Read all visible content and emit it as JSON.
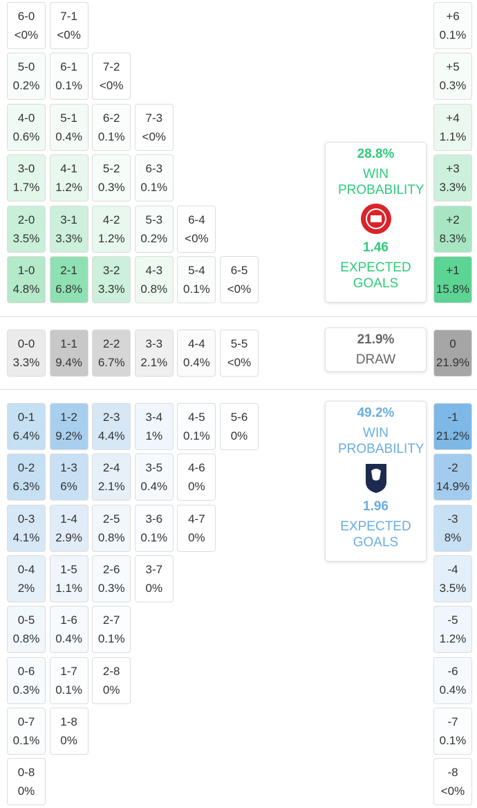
{
  "home_scores": [
    [
      {
        "s": "6-0",
        "p": "<0%",
        "c": "#ffffff"
      },
      {
        "s": "7-1",
        "p": "<0%",
        "c": "#ffffff"
      }
    ],
    [
      {
        "s": "5-0",
        "p": "0.2%",
        "c": "#f8fcfa"
      },
      {
        "s": "6-1",
        "p": "0.1%",
        "c": "#fbfdfc"
      },
      {
        "s": "7-2",
        "p": "<0%",
        "c": "#ffffff"
      }
    ],
    [
      {
        "s": "4-0",
        "p": "0.6%",
        "c": "#f0faf4"
      },
      {
        "s": "5-1",
        "p": "0.4%",
        "c": "#f4fbf7"
      },
      {
        "s": "6-2",
        "p": "0.1%",
        "c": "#fbfdfc"
      },
      {
        "s": "7-3",
        "p": "<0%",
        "c": "#ffffff"
      }
    ],
    [
      {
        "s": "3-0",
        "p": "1.7%",
        "c": "#e2f6ea"
      },
      {
        "s": "4-1",
        "p": "1.2%",
        "c": "#e8f8ee"
      },
      {
        "s": "5-2",
        "p": "0.3%",
        "c": "#f6fcf8"
      },
      {
        "s": "6-3",
        "p": "0.1%",
        "c": "#fbfdfc"
      }
    ],
    [
      {
        "s": "2-0",
        "p": "3.5%",
        "c": "#c9efd9"
      },
      {
        "s": "3-1",
        "p": "3.3%",
        "c": "#ccf0db"
      },
      {
        "s": "4-2",
        "p": "1.2%",
        "c": "#e8f8ee"
      },
      {
        "s": "5-3",
        "p": "0.2%",
        "c": "#f8fcfa"
      },
      {
        "s": "6-4",
        "p": "<0%",
        "c": "#ffffff"
      }
    ],
    [
      {
        "s": "1-0",
        "p": "4.8%",
        "c": "#b4e9ca"
      },
      {
        "s": "2-1",
        "p": "6.8%",
        "c": "#8fe0b2"
      },
      {
        "s": "3-2",
        "p": "3.3%",
        "c": "#ccf0db"
      },
      {
        "s": "4-3",
        "p": "0.8%",
        "c": "#eef9f2"
      },
      {
        "s": "5-4",
        "p": "0.1%",
        "c": "#fbfdfc"
      },
      {
        "s": "6-5",
        "p": "<0%",
        "c": "#ffffff"
      }
    ]
  ],
  "home_margins": [
    {
      "s": "+6",
      "p": "0.1%",
      "c": "#fbfdfc"
    },
    {
      "s": "+5",
      "p": "0.3%",
      "c": "#f6fcf8"
    },
    {
      "s": "+4",
      "p": "1.1%",
      "c": "#eaf8ef"
    },
    {
      "s": "+3",
      "p": "3.3%",
      "c": "#ccf0db"
    },
    {
      "s": "+2",
      "p": "8.3%",
      "c": "#a8e6c3"
    },
    {
      "s": "+1",
      "p": "15.8%",
      "c": "#5cd494"
    }
  ],
  "draw_scores": [
    {
      "s": "0-0",
      "p": "3.3%",
      "c": "#ebebeb"
    },
    {
      "s": "1-1",
      "p": "9.4%",
      "c": "#c8c8c8"
    },
    {
      "s": "2-2",
      "p": "6.7%",
      "c": "#d6d6d6"
    },
    {
      "s": "3-3",
      "p": "2.1%",
      "c": "#efefef"
    },
    {
      "s": "4-4",
      "p": "0.4%",
      "c": "#fbfbfb"
    },
    {
      "s": "5-5",
      "p": "<0%",
      "c": "#ffffff"
    }
  ],
  "draw_margin": {
    "s": "0",
    "p": "21.9%",
    "c": "#a6a6a6"
  },
  "away_scores": [
    [
      {
        "s": "0-1",
        "p": "6.4%",
        "c": "#c5dff3"
      },
      {
        "s": "1-2",
        "p": "9.2%",
        "c": "#a9cfee"
      },
      {
        "s": "2-3",
        "p": "4.4%",
        "c": "#d6e8f6"
      },
      {
        "s": "3-4",
        "p": "1%",
        "c": "#f0f6fc"
      },
      {
        "s": "4-5",
        "p": "0.1%",
        "c": "#fbfdfe"
      },
      {
        "s": "5-6",
        "p": "0%",
        "c": "#ffffff"
      }
    ],
    [
      {
        "s": "0-2",
        "p": "6.3%",
        "c": "#c5dff3"
      },
      {
        "s": "1-3",
        "p": "6%",
        "c": "#c8e0f4"
      },
      {
        "s": "2-4",
        "p": "2.1%",
        "c": "#e6f0f9"
      },
      {
        "s": "3-5",
        "p": "0.4%",
        "c": "#f7fafd"
      },
      {
        "s": "4-6",
        "p": "0%",
        "c": "#ffffff"
      }
    ],
    [
      {
        "s": "0-3",
        "p": "4.1%",
        "c": "#d6e8f6"
      },
      {
        "s": "1-4",
        "p": "2.9%",
        "c": "#e0edf8"
      },
      {
        "s": "2-5",
        "p": "0.8%",
        "c": "#f2f7fc"
      },
      {
        "s": "3-6",
        "p": "0.1%",
        "c": "#fbfdfe"
      },
      {
        "s": "4-7",
        "p": "0%",
        "c": "#ffffff"
      }
    ],
    [
      {
        "s": "0-4",
        "p": "2%",
        "c": "#e6f0f9"
      },
      {
        "s": "1-5",
        "p": "1.1%",
        "c": "#eff5fb"
      },
      {
        "s": "2-6",
        "p": "0.3%",
        "c": "#f8fbfd"
      },
      {
        "s": "3-7",
        "p": "0%",
        "c": "#ffffff"
      }
    ],
    [
      {
        "s": "0-5",
        "p": "0.8%",
        "c": "#f2f7fc"
      },
      {
        "s": "1-6",
        "p": "0.4%",
        "c": "#f7fafd"
      },
      {
        "s": "2-7",
        "p": "0.1%",
        "c": "#fbfdfe"
      }
    ],
    [
      {
        "s": "0-6",
        "p": "0.3%",
        "c": "#f8fbfd"
      },
      {
        "s": "1-7",
        "p": "0.1%",
        "c": "#fbfdfe"
      },
      {
        "s": "2-8",
        "p": "0%",
        "c": "#ffffff"
      }
    ],
    [
      {
        "s": "0-7",
        "p": "0.1%",
        "c": "#fbfdfe"
      },
      {
        "s": "1-8",
        "p": "0%",
        "c": "#ffffff"
      }
    ],
    [
      {
        "s": "0-8",
        "p": "0%",
        "c": "#ffffff"
      }
    ]
  ],
  "away_margins": [
    {
      "s": "-1",
      "p": "21.2%",
      "c": "#7db8e6"
    },
    {
      "s": "-2",
      "p": "14.9%",
      "c": "#a3cbed"
    },
    {
      "s": "-3",
      "p": "8%",
      "c": "#c8e0f4"
    },
    {
      "s": "-4",
      "p": "3.5%",
      "c": "#e3eff9"
    },
    {
      "s": "-5",
      "p": "1.2%",
      "c": "#f0f6fc"
    },
    {
      "s": "-6",
      "p": "0.4%",
      "c": "#f7fafd"
    },
    {
      "s": "-7",
      "p": "0.1%",
      "c": "#fbfdfe"
    },
    {
      "s": "-8",
      "p": "<0%",
      "c": "#ffffff"
    }
  ],
  "home_card": {
    "win_pct": "28.8%",
    "win_label": "WIN PROBABILITY",
    "goals": "1.46",
    "goals_label": "EXPECTED GOALS"
  },
  "draw_card": {
    "pct": "21.9%",
    "label": "DRAW"
  },
  "away_card": {
    "win_pct": "49.2%",
    "win_label": "WIN PROBABILITY",
    "goals": "1.96",
    "goals_label": "EXPECTED GOALS"
  }
}
